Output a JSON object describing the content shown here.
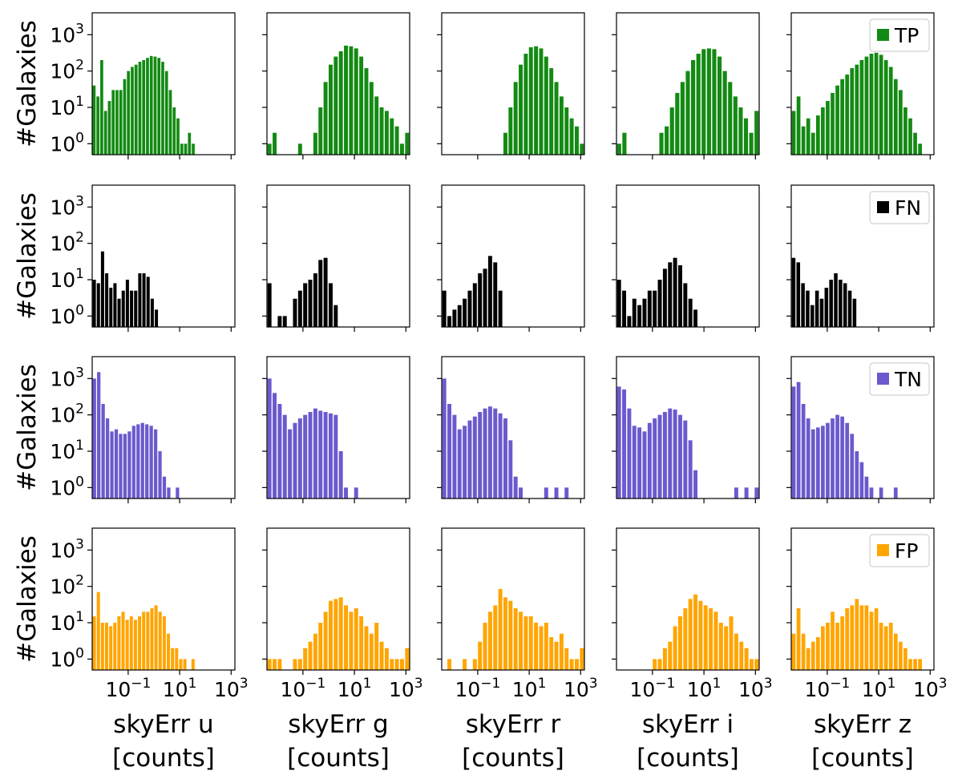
{
  "chart_data": {
    "type": "histogram-grid",
    "yscale": "log",
    "xscale": "log",
    "ylim": [
      0.5,
      4000
    ],
    "xlim": [
      0.004,
      1400
    ],
    "ylabel": "#Galaxies",
    "y_ticks": [
      {
        "value": 1,
        "base": "10",
        "exp": "0"
      },
      {
        "value": 10,
        "base": "10",
        "exp": "1"
      },
      {
        "value": 100,
        "base": "10",
        "exp": "2"
      },
      {
        "value": 1000,
        "base": "10",
        "exp": "3"
      }
    ],
    "x_ticks": [
      {
        "value": 0.1,
        "base": "10",
        "exp": "−1"
      },
      {
        "value": 10,
        "base": "10",
        "exp": "1"
      },
      {
        "value": 1000,
        "base": "10",
        "exp": "3"
      }
    ],
    "columns": [
      {
        "band": "u",
        "xlabel_line1": "skyErr u",
        "xlabel_line2": "[counts]"
      },
      {
        "band": "g",
        "xlabel_line1": "skyErr g",
        "xlabel_line2": "[counts]"
      },
      {
        "band": "r",
        "xlabel_line1": "skyErr r",
        "xlabel_line2": "[counts]"
      },
      {
        "band": "i",
        "xlabel_line1": "skyErr i",
        "xlabel_line2": "[counts]"
      },
      {
        "band": "z",
        "xlabel_line1": "skyErr z",
        "xlabel_line2": "[counts]"
      }
    ],
    "rows": [
      {
        "legend": "TP",
        "color": "#138a13",
        "panels": [
          {
            "x_start": 0.004,
            "x_end": 40,
            "values": [
              40,
              20,
              200,
              8,
              15,
              30,
              30,
              30,
              60,
              100,
              130,
              150,
              180,
              200,
              230,
              260,
              250,
              230,
              180,
              100,
              30,
              10,
              5,
              1,
              1,
              2,
              1
            ]
          },
          {
            "x_start": 0.004,
            "x_end": 1400,
            "values": [
              1,
              2,
              0,
              0,
              0,
              0,
              1,
              0,
              0,
              2,
              10,
              50,
              150,
              250,
              350,
              500,
              480,
              420,
              250,
              120,
              50,
              20,
              10,
              8,
              5,
              3,
              1,
              2
            ]
          },
          {
            "x_start": 0.004,
            "x_end": 1400,
            "values": [
              0,
              0,
              0,
              0,
              0,
              0,
              0,
              0,
              0,
              0,
              0,
              0,
              2,
              10,
              50,
              150,
              300,
              450,
              480,
              420,
              250,
              120,
              50,
              20,
              10,
              5,
              3,
              1
            ]
          },
          {
            "x_start": 0.004,
            "x_end": 1400,
            "values": [
              1,
              2,
              0,
              0,
              0,
              0,
              0,
              0,
              2,
              3,
              10,
              25,
              50,
              100,
              200,
              300,
              400,
              420,
              400,
              250,
              100,
              50,
              20,
              10,
              5,
              2,
              8
            ]
          },
          {
            "x_start": 0.004,
            "x_end": 500,
            "values": [
              8,
              20,
              3,
              5,
              2,
              6,
              10,
              15,
              25,
              40,
              60,
              80,
              120,
              150,
              200,
              250,
              300,
              320,
              280,
              200,
              130,
              60,
              30,
              10,
              5,
              2,
              1
            ]
          }
        ]
      },
      {
        "legend": "FN",
        "color": "#000000",
        "panels": [
          {
            "x_start": 0.004,
            "x_end": 1.5,
            "values": [
              10,
              8,
              60,
              15,
              6,
              8,
              3,
              5,
              10,
              5,
              5,
              15,
              15,
              12,
              3,
              1.5
            ]
          },
          {
            "x_start": 0.004,
            "x_end": 1400,
            "values": [
              8,
              0,
              1,
              1,
              0,
              3,
              5,
              8,
              10,
              15,
              35,
              40,
              8,
              2,
              0,
              0,
              0,
              0,
              0,
              0,
              0,
              0,
              0,
              0,
              0,
              0,
              0,
              0
            ]
          },
          {
            "x_start": 0.004,
            "x_end": 1400,
            "values": [
              5,
              1,
              1.5,
              2,
              3,
              5,
              8,
              15,
              20,
              45,
              30,
              5,
              0,
              0,
              0,
              0,
              0,
              0,
              0,
              0,
              0,
              0,
              0,
              0,
              0,
              0,
              0,
              0
            ]
          },
          {
            "x_start": 0.004,
            "x_end": 1400,
            "values": [
              10,
              5,
              1,
              3,
              2,
              3,
              5,
              5,
              10,
              20,
              30,
              40,
              25,
              8,
              3,
              1.5,
              0,
              0,
              0,
              0,
              0,
              0,
              0,
              0,
              0,
              0,
              0,
              0
            ]
          },
          {
            "x_start": 0.004,
            "x_end": 500,
            "values": [
              40,
              30,
              8,
              5,
              2,
              5,
              3,
              6,
              10,
              15,
              10,
              8,
              5,
              3,
              0,
              0,
              0,
              0,
              0,
              0,
              0,
              0,
              0,
              0,
              0,
              0,
              0,
              0
            ]
          }
        ]
      },
      {
        "legend": "TN",
        "color": "#6a5acd",
        "panels": [
          {
            "x_start": 0.004,
            "x_end": 10,
            "values": [
              1000,
              1500,
              200,
              80,
              35,
              40,
              30,
              30,
              35,
              50,
              55,
              60,
              55,
              50,
              40,
              10,
              2,
              1,
              0,
              1
            ]
          },
          {
            "x_start": 0.004,
            "x_end": 1400,
            "values": [
              1000,
              400,
              200,
              100,
              40,
              60,
              80,
              100,
              120,
              150,
              130,
              120,
              110,
              100,
              10,
              1,
              0,
              1,
              0,
              0,
              0,
              0,
              0,
              0,
              0,
              0,
              0,
              0
            ]
          },
          {
            "x_start": 0.004,
            "x_end": 1400,
            "values": [
              1000,
              200,
              100,
              40,
              50,
              70,
              90,
              120,
              150,
              170,
              150,
              110,
              80,
              20,
              2,
              1,
              0,
              0,
              0,
              0,
              1,
              0,
              1,
              0,
              1,
              0,
              0,
              0
            ]
          },
          {
            "x_start": 0.004,
            "x_end": 1400,
            "values": [
              600,
              500,
              150,
              50,
              45,
              35,
              60,
              80,
              100,
              120,
              150,
              140,
              100,
              70,
              20,
              3,
              0,
              0,
              0,
              0,
              0,
              0,
              0,
              1,
              0,
              1,
              0,
              1
            ]
          },
          {
            "x_start": 0.004,
            "x_end": 500,
            "values": [
              600,
              800,
              200,
              80,
              40,
              45,
              50,
              60,
              80,
              100,
              90,
              60,
              30,
              10,
              5,
              2,
              1,
              0,
              1,
              0,
              0,
              1,
              0,
              0,
              0,
              0,
              0
            ]
          }
        ]
      },
      {
        "legend": "FP",
        "color": "#ffa500",
        "panels": [
          {
            "x_start": 0.004,
            "x_end": 40,
            "values": [
              15,
              70,
              10,
              10,
              8,
              10,
              15,
              20,
              12,
              15,
              12,
              15,
              20,
              20,
              25,
              30,
              20,
              15,
              5,
              2,
              2,
              1,
              1,
              0,
              1
            ]
          },
          {
            "x_start": 0.004,
            "x_end": 1400,
            "values": [
              1,
              1,
              1,
              0,
              0,
              1,
              1,
              2,
              3,
              5,
              10,
              20,
              40,
              45,
              50,
              30,
              20,
              25,
              15,
              8,
              5,
              10,
              3,
              2,
              1,
              1,
              1,
              2
            ]
          },
          {
            "x_start": 0.004,
            "x_end": 1400,
            "values": [
              0,
              1,
              0,
              0,
              1,
              0,
              1,
              3,
              10,
              20,
              30,
              85,
              50,
              40,
              25,
              20,
              15,
              15,
              10,
              8,
              10,
              4,
              3,
              5,
              2,
              1,
              1,
              2
            ]
          },
          {
            "x_start": 0.004,
            "x_end": 1400,
            "values": [
              0,
              0,
              0,
              0,
              0,
              0,
              0,
              1,
              1,
              2,
              3,
              8,
              15,
              25,
              45,
              60,
              40,
              30,
              25,
              20,
              10,
              8,
              15,
              5,
              3,
              2,
              1,
              1
            ]
          },
          {
            "x_start": 0.004,
            "x_end": 500,
            "values": [
              5,
              25,
              5,
              2,
              3,
              4,
              8,
              10,
              20,
              10,
              15,
              25,
              30,
              45,
              30,
              30,
              20,
              25,
              10,
              8,
              10,
              5,
              3,
              2,
              1,
              1,
              1
            ]
          }
        ]
      }
    ]
  }
}
